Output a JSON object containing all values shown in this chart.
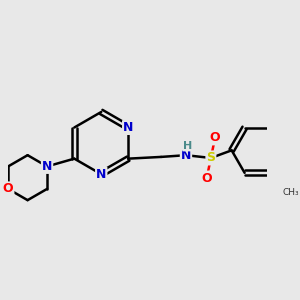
{
  "bg_color": "#e8e8e8",
  "bond_color": "#000000",
  "bond_width": 1.8,
  "atom_colors": {
    "N": "#0000cc",
    "O": "#ff0000",
    "S": "#cccc00",
    "C": "#000000",
    "H": "#4a8a8a"
  },
  "font_size_atom": 9,
  "font_size_H": 8
}
